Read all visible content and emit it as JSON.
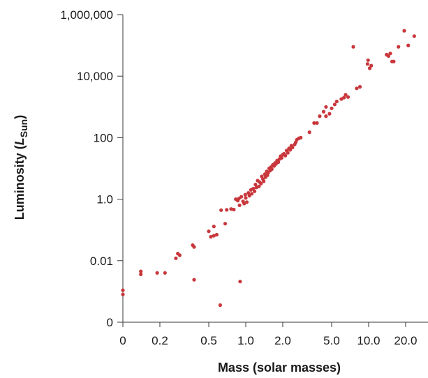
{
  "chart_data": {
    "type": "scatter",
    "title": "",
    "xlabel": "Mass (solar masses)",
    "ylabel_main": "Luminosity (",
    "ylabel_italic": "L",
    "ylabel_sub": "Sun",
    "ylabel_close": ")",
    "x_scale": "log",
    "y_scale": "log",
    "grid": false,
    "point_color": "#c8373c",
    "x_ticks": [
      {
        "value": 0.1,
        "label": "0"
      },
      {
        "value": 0.2,
        "label": "0.2"
      },
      {
        "value": 0.5,
        "label": "0.5"
      },
      {
        "value": 1.0,
        "label": "1.0"
      },
      {
        "value": 2.0,
        "label": "2.0"
      },
      {
        "value": 5.0,
        "label": "5.0"
      },
      {
        "value": 10.0,
        "label": "10.0"
      },
      {
        "value": 20.0,
        "label": "20.0"
      }
    ],
    "y_ticks": [
      {
        "value": 0.0001,
        "label": "0"
      },
      {
        "value": 0.01,
        "label": "0.01"
      },
      {
        "value": 1,
        "label": "1.0"
      },
      {
        "value": 100,
        "label": "100"
      },
      {
        "value": 10000,
        "label": "10,000"
      },
      {
        "value": 1000000,
        "label": "1,000,000"
      }
    ],
    "xlim": [
      0.1,
      25
    ],
    "ylim": [
      0.0001,
      1000000
    ],
    "points": [
      [
        0.1,
        0.0011
      ],
      [
        0.1,
        0.0008
      ],
      [
        0.14,
        0.0045
      ],
      [
        0.14,
        0.0036
      ],
      [
        0.19,
        0.004
      ],
      [
        0.22,
        0.004
      ],
      [
        0.27,
        0.012
      ],
      [
        0.28,
        0.017
      ],
      [
        0.29,
        0.015
      ],
      [
        0.37,
        0.032
      ],
      [
        0.38,
        0.028
      ],
      [
        0.38,
        0.0024
      ],
      [
        0.5,
        0.09
      ],
      [
        0.52,
        0.06
      ],
      [
        0.55,
        0.13
      ],
      [
        0.55,
        0.065
      ],
      [
        0.58,
        0.07
      ],
      [
        0.62,
        0.00036
      ],
      [
        0.63,
        0.44
      ],
      [
        0.68,
        0.16
      ],
      [
        0.7,
        0.45
      ],
      [
        0.76,
        0.48
      ],
      [
        0.8,
        0.46
      ],
      [
        0.83,
        1.0
      ],
      [
        0.86,
        0.9
      ],
      [
        0.88,
        1.05
      ],
      [
        0.89,
        0.63
      ],
      [
        0.9,
        0.0021
      ],
      [
        0.92,
        1.2
      ],
      [
        0.95,
        0.85
      ],
      [
        0.97,
        0.72
      ],
      [
        0.99,
        1.4
      ],
      [
        1.0,
        1.1
      ],
      [
        1.02,
        0.8
      ],
      [
        1.05,
        1.6
      ],
      [
        1.07,
        1.3
      ],
      [
        1.1,
        2.0
      ],
      [
        1.12,
        1.5
      ],
      [
        1.15,
        2.2
      ],
      [
        1.18,
        1.8
      ],
      [
        1.2,
        3.0
      ],
      [
        1.22,
        2.4
      ],
      [
        1.25,
        4.0
      ],
      [
        1.28,
        2.6
      ],
      [
        1.3,
        3.6
      ],
      [
        1.33,
        3.2
      ],
      [
        1.35,
        5.5
      ],
      [
        1.38,
        4.5
      ],
      [
        1.4,
        3.8
      ],
      [
        1.43,
        6.5
      ],
      [
        1.45,
        5.2
      ],
      [
        1.48,
        8.0
      ],
      [
        1.5,
        6.0
      ],
      [
        1.52,
        7.2
      ],
      [
        1.55,
        10
      ],
      [
        1.58,
        8.5
      ],
      [
        1.6,
        11
      ],
      [
        1.63,
        9.5
      ],
      [
        1.66,
        13
      ],
      [
        1.7,
        12
      ],
      [
        1.73,
        15
      ],
      [
        1.76,
        14
      ],
      [
        1.8,
        18
      ],
      [
        1.84,
        16
      ],
      [
        1.88,
        20
      ],
      [
        1.92,
        25
      ],
      [
        1.96,
        22
      ],
      [
        2.0,
        28
      ],
      [
        2.05,
        30
      ],
      [
        2.1,
        26
      ],
      [
        2.15,
        38
      ],
      [
        2.2,
        32
      ],
      [
        2.25,
        45
      ],
      [
        2.3,
        40
      ],
      [
        2.35,
        55
      ],
      [
        2.4,
        48
      ],
      [
        2.5,
        60
      ],
      [
        2.55,
        70
      ],
      [
        2.6,
        85
      ],
      [
        2.7,
        95
      ],
      [
        2.8,
        100
      ],
      [
        3.3,
        150
      ],
      [
        3.6,
        300
      ],
      [
        3.8,
        300
      ],
      [
        4.0,
        500
      ],
      [
        4.3,
        700
      ],
      [
        4.5,
        500
      ],
      [
        4.5,
        1000
      ],
      [
        4.8,
        600
      ],
      [
        5.0,
        900
      ],
      [
        5.3,
        1200
      ],
      [
        5.5,
        1500
      ],
      [
        6.0,
        1800
      ],
      [
        6.3,
        2000
      ],
      [
        6.5,
        2500
      ],
      [
        6.8,
        2100
      ],
      [
        7.5,
        90000
      ],
      [
        8.0,
        4000
      ],
      [
        8.5,
        4500
      ],
      [
        9.8,
        25000
      ],
      [
        9.9,
        33000
      ],
      [
        10.2,
        18000
      ],
      [
        10.5,
        22000
      ],
      [
        14.0,
        50000
      ],
      [
        14.5,
        45000
      ],
      [
        15.0,
        55000
      ],
      [
        15.5,
        30000
      ],
      [
        16.0,
        30000
      ],
      [
        17.5,
        90000
      ],
      [
        19.5,
        300000
      ],
      [
        21.0,
        100000
      ],
      [
        23.5,
        200000
      ]
    ]
  }
}
